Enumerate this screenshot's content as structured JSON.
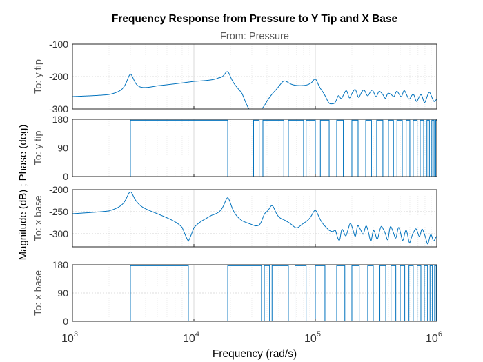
{
  "chart_data": {
    "type": "line",
    "title": "Frequency Response from Pressure to Y Tip and X Base",
    "subtitle": "From: Pressure",
    "xlabel": "Frequency  (rad/s)",
    "ylabel": "Magnitude (dB) ; Phase (deg)",
    "xscale": "log",
    "xlim": [
      1000,
      1000000
    ],
    "x_ticks": [
      {
        "exp": "3"
      },
      {
        "exp": "4"
      },
      {
        "exp": "5"
      },
      {
        "exp": "6"
      }
    ],
    "x_tick_base": "10",
    "grid": true,
    "line_color": "#0072BD",
    "panels": [
      {
        "id": "mag-ytip",
        "kind": "magnitude",
        "output_label": "To: y tip",
        "ylim": [
          -300,
          -100
        ],
        "yticks": [
          -300,
          -200,
          -100
        ],
        "ytick_labels": [
          "-300",
          "-200",
          "-100"
        ],
        "base_points": [
          [
            1000,
            -262
          ],
          [
            2000,
            -258
          ],
          [
            2800,
            -250
          ],
          [
            3400,
            -245
          ],
          [
            5000,
            -230
          ],
          [
            10000,
            -215
          ],
          [
            16000,
            -210
          ],
          [
            20000,
            -225
          ],
          [
            25000,
            -230
          ],
          [
            30000,
            -262
          ],
          [
            40000,
            -243
          ],
          [
            60000,
            -230
          ],
          [
            90000,
            -228
          ],
          [
            110000,
            -236
          ],
          [
            150000,
            -244
          ],
          [
            200000,
            -240
          ],
          [
            300000,
            -245
          ],
          [
            500000,
            -252
          ],
          [
            1000000,
            -262
          ]
        ],
        "resonances": [
          [
            3000,
            55,
            0.04
          ],
          [
            19000,
            42,
            0.04
          ],
          [
            55000,
            25,
            0.05
          ],
          [
            100000,
            30,
            0.03
          ]
        ],
        "antiresonances": [
          [
            28000,
            35,
            0.06
          ],
          [
            34000,
            30,
            0.06
          ],
          [
            38000,
            22,
            0.06
          ],
          [
            130000,
            32,
            0.04
          ],
          [
            145000,
            28,
            0.04
          ]
        ],
        "cluster": {
          "start": 150000,
          "end": 1000000,
          "count": 24,
          "amp": 18,
          "width": 0.02,
          "seed": 7
        }
      },
      {
        "id": "phase-ytip",
        "kind": "phase",
        "output_label": "To: y tip",
        "ylim": [
          0,
          180
        ],
        "yticks": [
          0,
          90,
          180
        ],
        "ytick_labels": [
          "0",
          "90",
          "180"
        ],
        "switches": [
          3000,
          19000,
          31000,
          34500,
          37000,
          55000,
          60000,
          80000,
          84000,
          100000,
          110000,
          130000,
          150000,
          170000,
          200000,
          225000,
          260000,
          290000,
          320000,
          360000,
          400000,
          440000,
          470000,
          520000,
          560000,
          600000,
          640000,
          690000,
          730000,
          780000,
          830000,
          870000,
          910000,
          950000,
          980000
        ]
      },
      {
        "id": "mag-xbase",
        "kind": "magnitude",
        "output_label": "To: x base",
        "ylim": [
          -330,
          -200
        ],
        "yticks": [
          -300,
          -250,
          -200
        ],
        "ytick_labels": [
          "-300",
          "-250",
          "-200"
        ],
        "base_points": [
          [
            1000,
            -255
          ],
          [
            2000,
            -250
          ],
          [
            2800,
            -240
          ],
          [
            3400,
            -240
          ],
          [
            5000,
            -255
          ],
          [
            8000,
            -275
          ],
          [
            9000,
            -298
          ],
          [
            10000,
            -275
          ],
          [
            14000,
            -260
          ],
          [
            19000,
            -258
          ],
          [
            25000,
            -275
          ],
          [
            32000,
            -283
          ],
          [
            40000,
            -280
          ],
          [
            55000,
            -272
          ],
          [
            70000,
            -275
          ],
          [
            100000,
            -275
          ],
          [
            130000,
            -290
          ],
          [
            200000,
            -285
          ],
          [
            400000,
            -290
          ],
          [
            1000000,
            -300
          ]
        ],
        "resonances": [
          [
            3000,
            35,
            0.04
          ],
          [
            19000,
            40,
            0.04
          ],
          [
            38000,
            30,
            0.04
          ],
          [
            44000,
            38,
            0.04
          ],
          [
            100000,
            30,
            0.04
          ]
        ],
        "antiresonances": [
          [
            9000,
            20,
            0.06
          ],
          [
            36000,
            20,
            0.05
          ],
          [
            70000,
            15,
            0.05
          ],
          [
            150000,
            25,
            0.04
          ]
        ],
        "cluster": {
          "start": 140000,
          "end": 1000000,
          "count": 26,
          "amp": 22,
          "width": 0.018,
          "seed": 13
        }
      },
      {
        "id": "phase-xbase",
        "kind": "phase",
        "output_label": "To: x base",
        "ylim": [
          0,
          180
        ],
        "yticks": [
          0,
          90,
          180
        ],
        "ytick_labels": [
          "0",
          "90",
          "180"
        ],
        "switches": [
          3000,
          9000,
          19000,
          36000,
          38000,
          42000,
          44000,
          60000,
          68000,
          84000,
          100000,
          120000,
          150000,
          175000,
          200000,
          230000,
          270000,
          300000,
          340000,
          380000,
          420000,
          460000,
          500000,
          545000,
          590000,
          640000,
          690000,
          740000,
          790000,
          840000,
          880000,
          920000,
          960000,
          990000
        ]
      }
    ]
  }
}
